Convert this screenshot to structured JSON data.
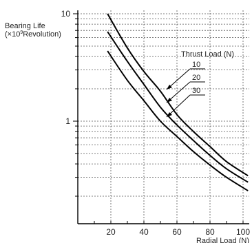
{
  "chart_data": {
    "type": "line",
    "ylabel": "Bearing Life",
    "yunit_base": "(×10",
    "yunit_exp": "9",
    "yunit_tail": "Revolution)",
    "xlabel": "Radial Load (N)",
    "legend_title": "Thrust Load (N)",
    "y_scale": "log",
    "ylim": [
      0.1,
      10
    ],
    "xlim": [
      0,
      105
    ],
    "grid": true,
    "x_ticks": [
      {
        "value": 20,
        "label": "20"
      },
      {
        "value": 40,
        "label": "40"
      },
      {
        "value": 60,
        "label": "60"
      },
      {
        "value": 80,
        "label": "80"
      },
      {
        "value": 100,
        "label": "100"
      }
    ],
    "y_ticks": [
      {
        "value": 1,
        "label": "1"
      },
      {
        "value": 10,
        "label": "10"
      }
    ],
    "series": [
      {
        "name": "10",
        "points": [
          [
            18,
            10.0
          ],
          [
            30,
            4.8
          ],
          [
            40,
            2.9
          ],
          [
            50,
            1.9
          ],
          [
            60,
            1.15
          ],
          [
            70,
            0.8
          ],
          [
            80,
            0.58
          ],
          [
            90,
            0.42
          ],
          [
            103,
            0.31
          ]
        ]
      },
      {
        "name": "20",
        "points": [
          [
            18,
            6.8
          ],
          [
            30,
            3.6
          ],
          [
            40,
            2.2
          ],
          [
            50,
            1.35
          ],
          [
            60,
            0.92
          ],
          [
            70,
            0.66
          ],
          [
            80,
            0.48
          ],
          [
            90,
            0.36
          ],
          [
            103,
            0.27
          ]
        ]
      },
      {
        "name": "30",
        "points": [
          [
            18,
            4.5
          ],
          [
            30,
            2.4
          ],
          [
            40,
            1.55
          ],
          [
            50,
            1.0
          ],
          [
            60,
            0.72
          ],
          [
            70,
            0.52
          ],
          [
            80,
            0.39
          ],
          [
            90,
            0.3
          ],
          [
            103,
            0.225
          ]
        ]
      }
    ],
    "colors": {
      "line": "#000000",
      "grid": "#555555",
      "text": "#222222"
    }
  }
}
